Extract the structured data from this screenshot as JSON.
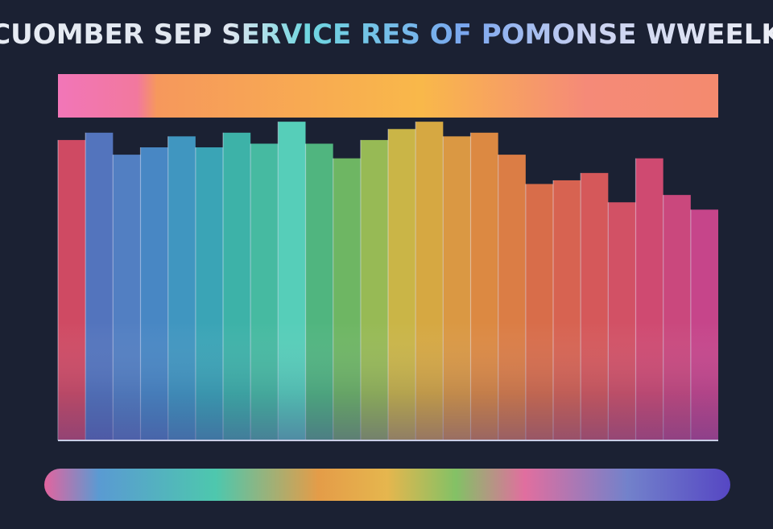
{
  "chart_data": {
    "type": "bar",
    "title": "CUOMBER SEP SERVICE RES OF POMONSE WWEELK",
    "categories": [
      null,
      null,
      null,
      null,
      null,
      null,
      null,
      null,
      null,
      null,
      null,
      null,
      null,
      null,
      null,
      null,
      null,
      null,
      null,
      null,
      null,
      null,
      null,
      null
    ],
    "values": [
      82,
      84,
      78,
      80,
      83,
      80,
      84,
      81,
      87,
      81,
      77,
      82,
      85,
      87,
      83,
      84,
      78,
      70,
      71,
      73,
      65,
      77,
      67,
      63
    ],
    "colors": [
      "#e8506a",
      "#5b7fd0",
      "#5a8cd6",
      "#4f95d8",
      "#45a6d4",
      "#3fb6c8",
      "#42c6b8",
      "#4ccfb0",
      "#5ee6cc",
      "#58c98a",
      "#7acb6a",
      "#a8cf5a",
      "#e2c94a",
      "#f0bb44",
      "#f5a845",
      "#f79744",
      "#f68a48",
      "#f3784d",
      "#f16c55",
      "#ef6060",
      "#ec586c",
      "#e8507a",
      "#e34d88",
      "#de4a96"
    ],
    "ylim": [
      0,
      100
    ]
  }
}
